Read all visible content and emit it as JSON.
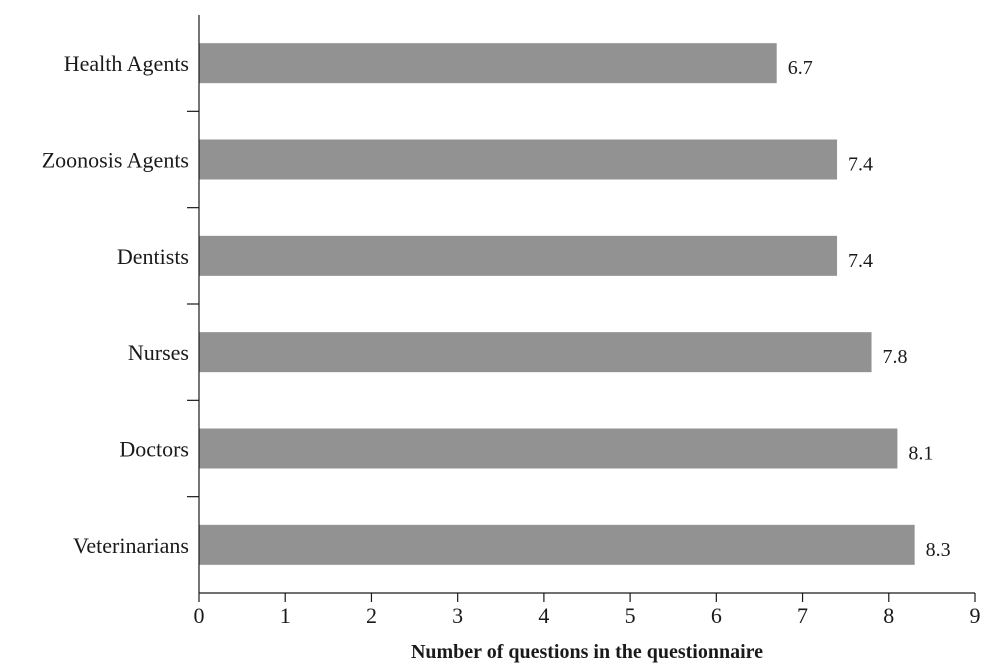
{
  "chart_data": {
    "type": "bar",
    "orientation": "horizontal",
    "categories": [
      "Health Agents",
      "Zoonosis Agents",
      "Dentists",
      "Nurses",
      "Doctors",
      "Veterinarians"
    ],
    "values": [
      6.7,
      7.4,
      7.4,
      7.8,
      8.1,
      8.3
    ],
    "value_labels": [
      "6.7",
      "7.4",
      "7.4",
      "7.8",
      "8.1",
      "8.3"
    ],
    "title": "",
    "xlabel": "Number of questions in the questionnaire",
    "ylabel": "",
    "xlim": [
      0,
      9
    ],
    "x_ticks": [
      0,
      1,
      2,
      3,
      4,
      5,
      6,
      7,
      8,
      9
    ],
    "grid": false,
    "bar_color": "#929292",
    "axis_color": "#1a1a1a"
  }
}
